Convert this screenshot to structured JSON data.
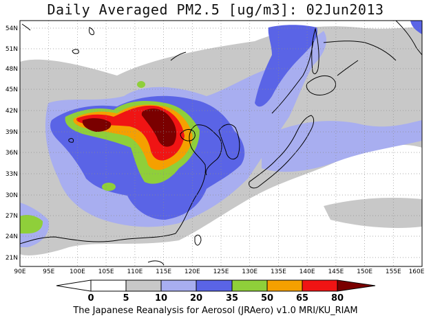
{
  "title": "Daily Averaged PM2.5 [ug/m3]: 02Jun2013",
  "credit": "The Japanese Reanalysis for Aerosol (JRAero) v1.0 MRI/KU_RIAM",
  "lat_labels": [
    "54N",
    "51N",
    "48N",
    "45N",
    "42N",
    "39N",
    "36N",
    "33N",
    "30N",
    "27N",
    "24N",
    "21N"
  ],
  "lon_labels": [
    "90E",
    "95E",
    "100E",
    "105E",
    "110E",
    "115E",
    "120E",
    "125E",
    "130E",
    "135E",
    "140E",
    "145E",
    "150E",
    "155E",
    "160E"
  ],
  "colorbar": {
    "ticks": [
      "0",
      "5",
      "10",
      "20",
      "35",
      "50",
      "65",
      "80"
    ],
    "colors": [
      "#ffffff",
      "#c8c8c8",
      "#a8aef0",
      "#5a64e6",
      "#8fcf3a",
      "#f5a000",
      "#f01414",
      "#7a0000"
    ]
  }
}
